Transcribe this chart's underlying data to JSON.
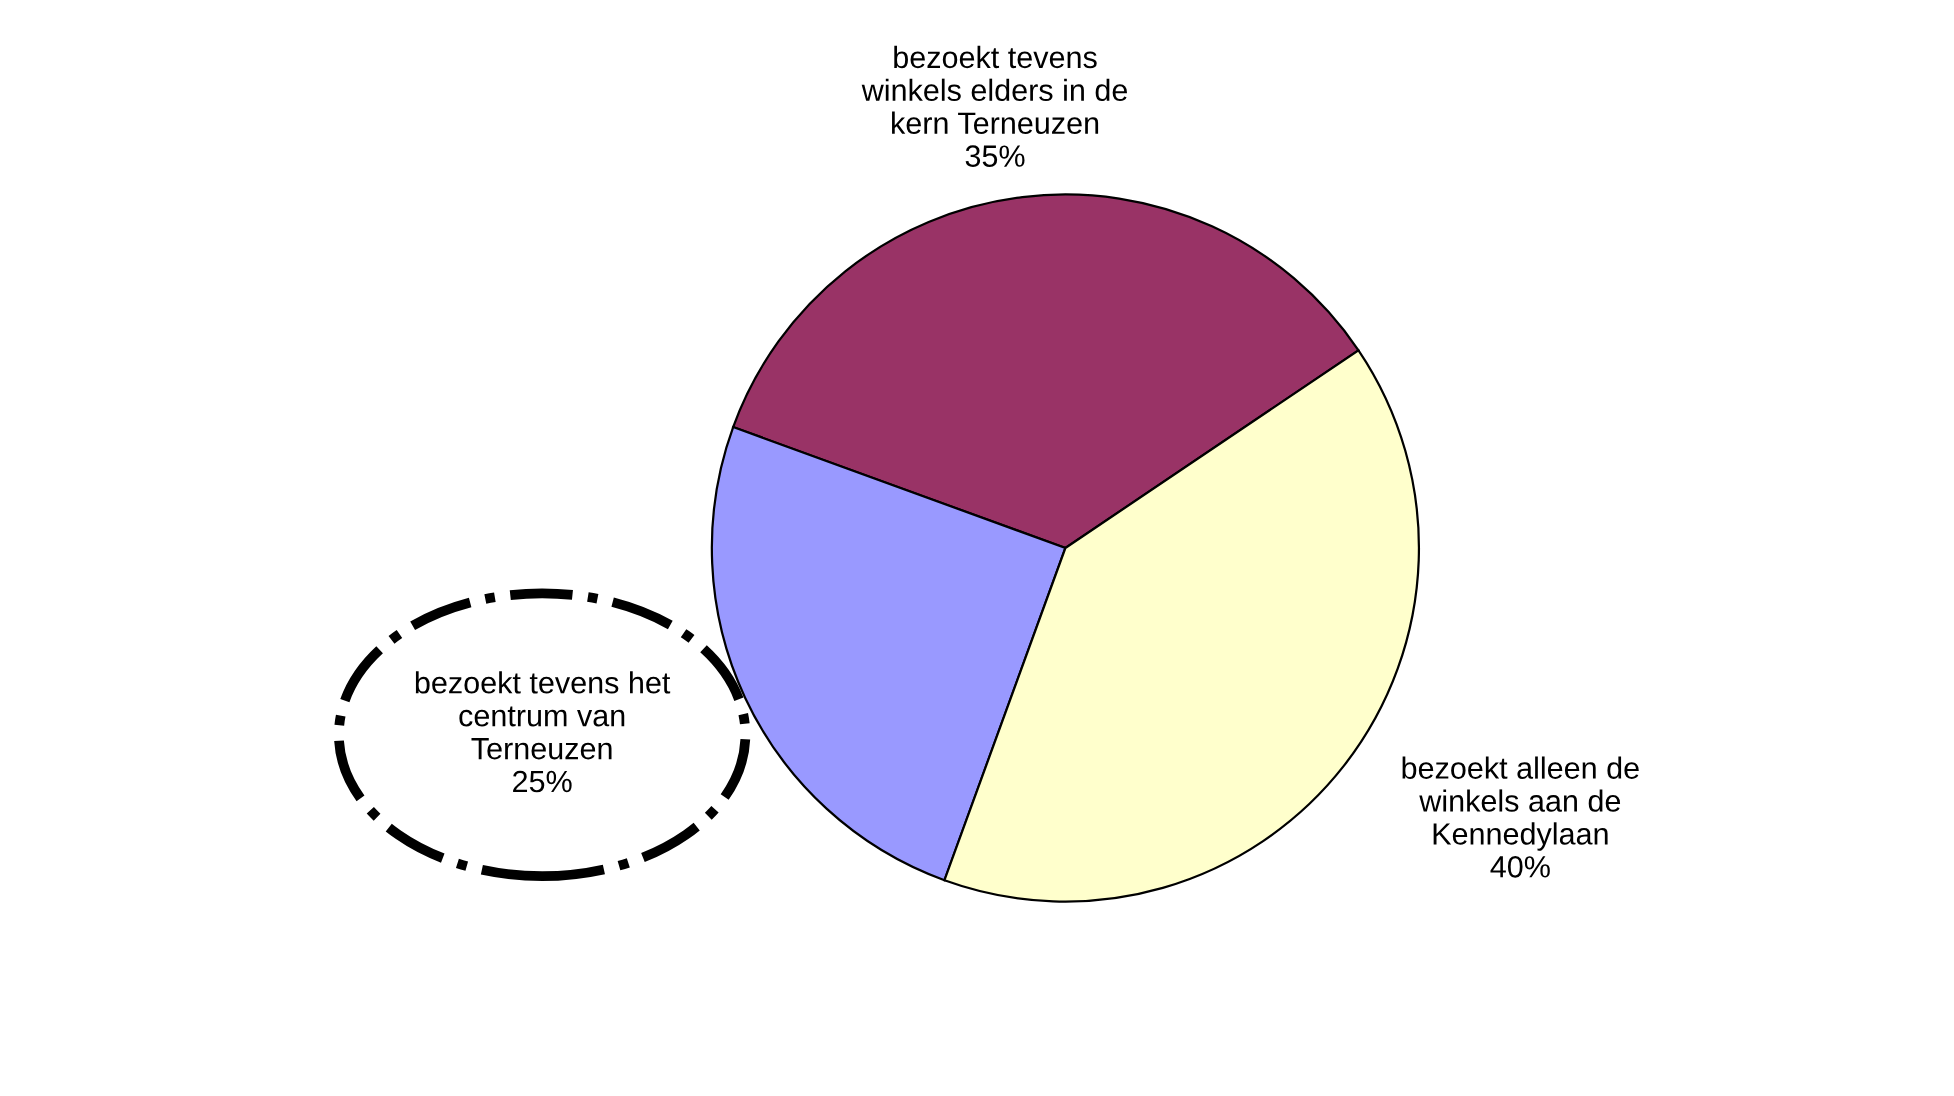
{
  "chart_data": {
    "type": "pie",
    "categories": [
      "bezoekt tevens\nwinkels elders in de\nkern Terneuzen",
      "bezoekt tevens het\ncentrum van\nTerneuzen",
      "bezoekt alleen de\nwinkels aan de\nKennedylaan"
    ],
    "values": [
      35,
      25,
      40
    ],
    "value_labels": [
      "35%",
      "25%",
      "40%"
    ],
    "colors": [
      "#993366",
      "#9999ff",
      "#ffffcc"
    ]
  }
}
